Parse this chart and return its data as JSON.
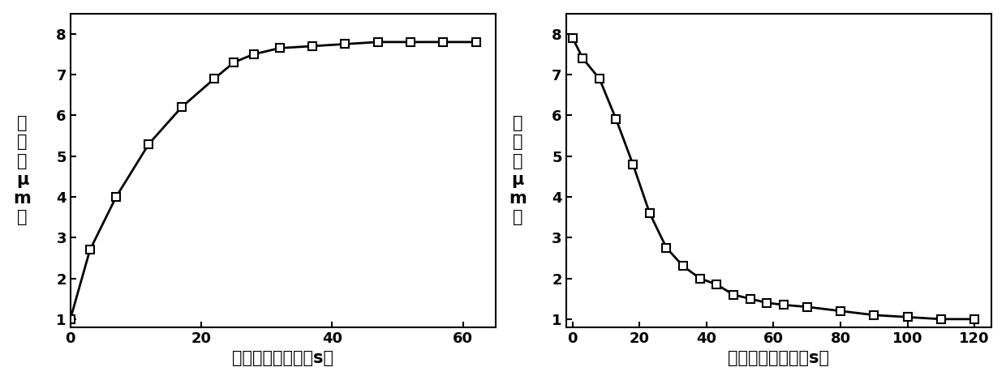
{
  "plot1": {
    "x": [
      0,
      3,
      7,
      12,
      17,
      22,
      25,
      28,
      32,
      37,
      42,
      47,
      52,
      57,
      62
    ],
    "y": [
      1.0,
      2.7,
      4.0,
      5.3,
      6.2,
      6.9,
      7.3,
      7.5,
      7.65,
      7.7,
      7.75,
      7.8,
      7.8,
      7.8,
      7.8
    ],
    "xlabel": "激发光辐照时间（s）",
    "ylabel": "螺距（μm）",
    "xlim": [
      0,
      65
    ],
    "ylim": [
      0.8,
      8.5
    ],
    "xticks": [
      0,
      20,
      40,
      60
    ],
    "yticks": [
      1,
      2,
      3,
      4,
      5,
      6,
      7,
      8
    ]
  },
  "plot2": {
    "x": [
      0,
      3,
      8,
      13,
      18,
      23,
      28,
      33,
      38,
      43,
      48,
      53,
      58,
      63,
      70,
      80,
      90,
      100,
      110,
      120
    ],
    "y": [
      7.9,
      7.4,
      6.9,
      5.9,
      4.8,
      3.6,
      2.75,
      2.3,
      2.0,
      1.85,
      1.6,
      1.5,
      1.4,
      1.35,
      1.3,
      1.2,
      1.1,
      1.05,
      1.0,
      1.0
    ],
    "xlabel": "激发光关闭时间（s）",
    "ylabel": "螺距（μm）",
    "xlim": [
      -2,
      125
    ],
    "ylim": [
      0.8,
      8.5
    ],
    "xticks": [
      0,
      20,
      40,
      60,
      80,
      100,
      120
    ],
    "yticks": [
      1,
      2,
      3,
      4,
      5,
      6,
      7,
      8
    ]
  },
  "line_color": "#000000",
  "marker": "s",
  "marker_facecolor": "#ffffff",
  "marker_edgecolor": "#000000",
  "marker_size": 7,
  "linewidth": 2.0,
  "font_size_label": 15,
  "font_size_tick": 13,
  "background_color": "#ffffff"
}
